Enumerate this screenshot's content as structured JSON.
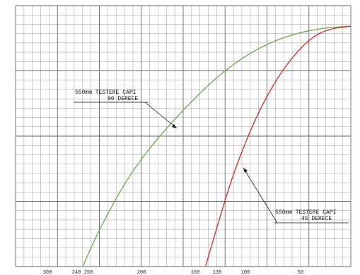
{
  "chart_data": {
    "type": "line",
    "x_axis_direction": "reversed",
    "x_tick_labels": [
      "300",
      "240",
      "250",
      "200",
      "160",
      "130",
      "100",
      "50"
    ],
    "right_tick_labels": [
      "",
      "",
      "",
      "",
      ""
    ],
    "grid": "dense",
    "series": [
      {
        "name": "90 DERECE",
        "color": "#6aa84f",
        "points": [
          [
            240,
            0
          ],
          [
            225,
            40
          ],
          [
            200,
            95
          ],
          [
            175,
            135
          ],
          [
            150,
            168
          ],
          [
            125,
            198
          ],
          [
            100,
            222
          ],
          [
            75,
            239
          ],
          [
            50,
            250
          ],
          [
            25,
            256
          ],
          [
            0,
            258
          ]
        ]
      },
      {
        "name": "45 DERECE",
        "color": "#dd2222",
        "points": [
          [
            130,
            0
          ],
          [
            118,
            50
          ],
          [
            105,
            100
          ],
          [
            92,
            140
          ],
          [
            80,
            172
          ],
          [
            65,
            204
          ],
          [
            50,
            228
          ],
          [
            35,
            246
          ],
          [
            20,
            255
          ],
          [
            0,
            258
          ]
        ]
      }
    ],
    "annotations": [
      {
        "id": "a90",
        "line1": "550mm TESTERE ÇAPI",
        "line2": "90 DERECE"
      },
      {
        "id": "a45",
        "line1": "550mm TESTERE ÇAPI",
        "line2": "45 DERECE"
      }
    ]
  }
}
